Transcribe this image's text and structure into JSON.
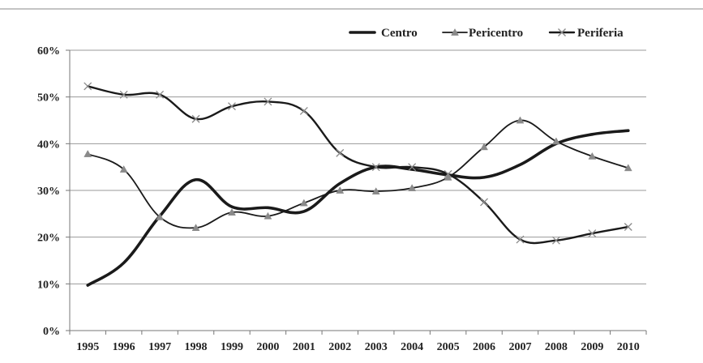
{
  "chart_data": {
    "type": "line",
    "title": "",
    "xlabel": "",
    "ylabel": "",
    "x": [
      "1995",
      "1996",
      "1997",
      "1998",
      "1999",
      "2000",
      "2001",
      "2002",
      "2003",
      "2004",
      "2005",
      "2006",
      "2007",
      "2008",
      "2009",
      "2010"
    ],
    "ylim": [
      0,
      60
    ],
    "yticks": [
      "0%",
      "10%",
      "20%",
      "30%",
      "40%",
      "50%",
      "60%"
    ],
    "ytick_values": [
      0,
      10,
      20,
      30,
      40,
      50,
      60
    ],
    "grid": true,
    "legend_position": "top-right",
    "series": [
      {
        "name": "Centro",
        "color": "#1a1a1a",
        "marker": "none",
        "values": [
          9.7,
          14.5,
          24.5,
          32.3,
          26.5,
          26.3,
          25.5,
          31.5,
          35.0,
          34.5,
          33.3,
          32.8,
          35.5,
          40.0,
          42.0,
          42.8
        ]
      },
      {
        "name": "Pericentro",
        "color": "#1a1a1a",
        "marker": "triangle",
        "values": [
          37.8,
          34.5,
          24.3,
          22.0,
          25.3,
          24.5,
          27.3,
          30.0,
          29.8,
          30.5,
          32.8,
          39.3,
          45.0,
          40.5,
          37.3,
          34.8
        ]
      },
      {
        "name": "Periferia",
        "color": "#1a1a1a",
        "marker": "x",
        "values": [
          52.3,
          50.5,
          50.5,
          45.3,
          48.0,
          49.0,
          47.0,
          38.0,
          35.0,
          35.0,
          33.5,
          27.5,
          19.5,
          19.3,
          20.8,
          22.2
        ]
      }
    ]
  }
}
